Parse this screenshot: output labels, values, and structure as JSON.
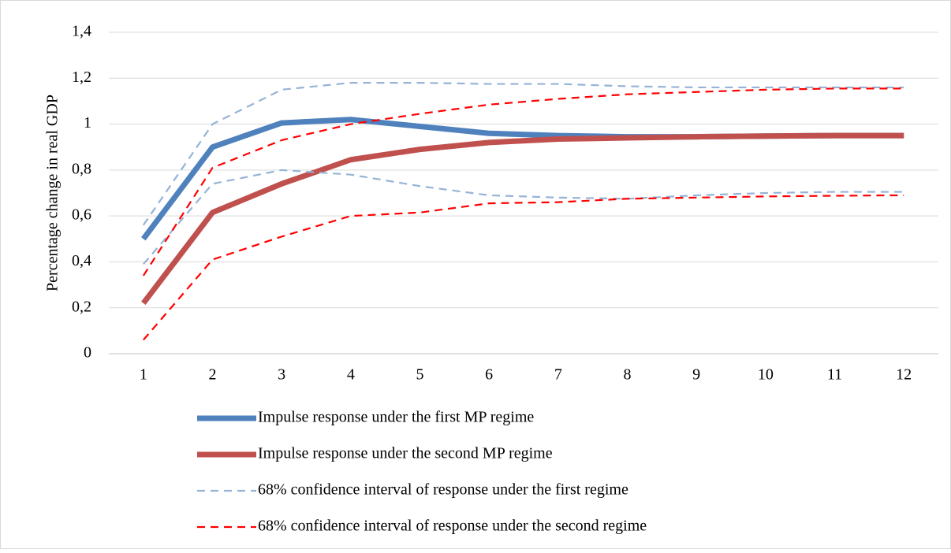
{
  "chart_data": {
    "type": "line",
    "y_label": "Percentage change in real GDP",
    "categories": [
      "1",
      "2",
      "3",
      "4",
      "5",
      "6",
      "7",
      "8",
      "9",
      "10",
      "11",
      "12"
    ],
    "ylim": [
      0,
      1.4
    ],
    "yticks": [
      0,
      {
        "value": 0.2,
        "label": "0,2"
      },
      {
        "value": 0.4,
        "label": "0,4"
      },
      {
        "value": 0.6,
        "label": "0,6"
      },
      {
        "value": 0.8,
        "label": "0,8"
      },
      1,
      {
        "value": 1.2,
        "label": "1,2"
      },
      {
        "value": 1.4,
        "label": "1,4"
      }
    ],
    "grid": true,
    "series": [
      {
        "name": "Impulse response under the first MP regime",
        "color": "#4f81bd",
        "style": "solid",
        "values": [
          0.5,
          0.9,
          1.005,
          1.02,
          0.99,
          0.96,
          0.95,
          0.945,
          0.945,
          0.948,
          0.95,
          0.95
        ]
      },
      {
        "name": "Impulse response under the second MP regime",
        "color": "#c0504d",
        "style": "solid",
        "values": [
          0.22,
          0.615,
          0.74,
          0.845,
          0.89,
          0.92,
          0.935,
          0.94,
          0.945,
          0.948,
          0.95,
          0.95
        ]
      },
      {
        "name": "68% confidence interval of response under the first regime",
        "color": "#95b3d7",
        "style": "dashed",
        "upper": [
          0.56,
          1.0,
          1.15,
          1.18,
          1.18,
          1.175,
          1.175,
          1.165,
          1.16,
          1.16,
          1.16,
          1.16
        ],
        "lower": [
          0.39,
          0.74,
          0.8,
          0.78,
          0.73,
          0.69,
          0.68,
          0.675,
          0.69,
          0.7,
          0.705,
          0.705
        ]
      },
      {
        "name": "68% confidence interval of response under the second regime",
        "color": "#ff0000",
        "style": "dashed",
        "upper": [
          0.34,
          0.81,
          0.93,
          1.0,
          1.045,
          1.085,
          1.11,
          1.13,
          1.14,
          1.15,
          1.155,
          1.155
        ],
        "lower": [
          0.06,
          0.41,
          0.51,
          0.6,
          0.615,
          0.655,
          0.66,
          0.675,
          0.68,
          0.685,
          0.688,
          0.69
        ]
      }
    ]
  }
}
